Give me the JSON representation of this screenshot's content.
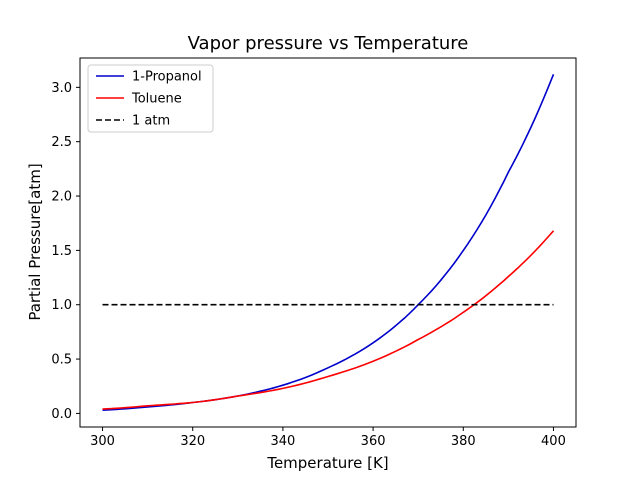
{
  "chart_data": {
    "type": "line",
    "title": "Vapor pressure vs Temperature",
    "xlabel": "Temperature [K]",
    "ylabel": "Partial Pressure[atm]",
    "xlim": [
      295,
      405
    ],
    "ylim": [
      -0.125,
      3.27
    ],
    "xticks": [
      300,
      320,
      340,
      360,
      380,
      400
    ],
    "yticks": [
      0.0,
      0.5,
      1.0,
      1.5,
      2.0,
      2.5,
      3.0
    ],
    "xtick_labels": [
      "300",
      "320",
      "340",
      "360",
      "380",
      "400"
    ],
    "ytick_labels": [
      "0.0",
      "0.5",
      "1.0",
      "1.5",
      "2.0",
      "2.5",
      "3.0"
    ],
    "grid": false,
    "legend_position": "top-left",
    "series": [
      {
        "name": "1-Propanol",
        "color": "#0000cc",
        "style": "solid",
        "x": [
          300,
          310,
          320,
          330,
          340,
          350,
          360,
          370,
          380,
          390,
          400
        ],
        "y": [
          0.03,
          0.06,
          0.1,
          0.16,
          0.26,
          0.42,
          0.65,
          1.0,
          1.5,
          2.22,
          3.12
        ]
      },
      {
        "name": "Toluene",
        "color": "#ff0000",
        "style": "solid",
        "x": [
          300,
          310,
          320,
          330,
          340,
          350,
          360,
          370,
          380,
          390,
          400
        ],
        "y": [
          0.04,
          0.07,
          0.1,
          0.16,
          0.23,
          0.34,
          0.48,
          0.68,
          0.93,
          1.26,
          1.68
        ]
      },
      {
        "name": "1 atm",
        "color": "#000000",
        "style": "dashed",
        "x": [
          300,
          400
        ],
        "y": [
          1.0,
          1.0
        ]
      }
    ]
  }
}
